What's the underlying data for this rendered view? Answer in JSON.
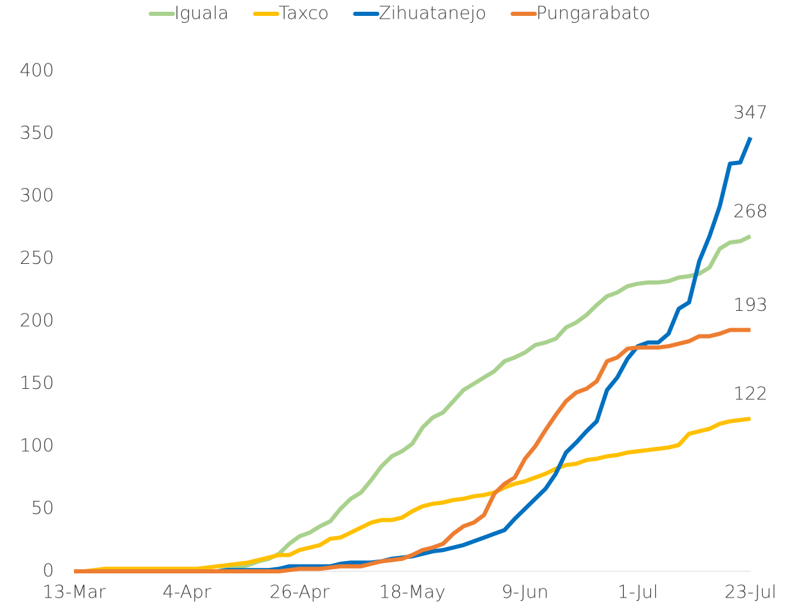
{
  "chart_data": {
    "type": "line",
    "categories": [
      "13-Mar",
      null,
      null,
      null,
      null,
      null,
      null,
      null,
      null,
      null,
      null,
      "4-Apr",
      null,
      null,
      null,
      null,
      null,
      null,
      null,
      null,
      null,
      null,
      "26-Apr",
      null,
      null,
      null,
      null,
      null,
      null,
      null,
      null,
      null,
      null,
      "18-May",
      null,
      null,
      null,
      null,
      null,
      null,
      null,
      null,
      null,
      null,
      "9-Jun",
      null,
      null,
      null,
      null,
      null,
      null,
      null,
      null,
      null,
      null,
      "1-Jul",
      null,
      null,
      null,
      null,
      null,
      null,
      null,
      null,
      null,
      null,
      "23-Jul"
    ],
    "series": [
      {
        "name": "Iguala",
        "color": "#a9d18e",
        "values": [
          0,
          0,
          0,
          0,
          0,
          0,
          0,
          0,
          0,
          0,
          0,
          0,
          0,
          0,
          0,
          2,
          3,
          5,
          8,
          10,
          14,
          22,
          28,
          31,
          36,
          40,
          50,
          58,
          63,
          73,
          84,
          92,
          96,
          102,
          115,
          123,
          127,
          136,
          145,
          150,
          155,
          160,
          168,
          171,
          175,
          181,
          183,
          186,
          195,
          199,
          205,
          213,
          220,
          223,
          228,
          230,
          231,
          231,
          232,
          235,
          236,
          238,
          243,
          258,
          263,
          264,
          268
        ]
      },
      {
        "name": "Taxco",
        "color": "#ffc000",
        "values": [
          0,
          0,
          1,
          2,
          2,
          2,
          2,
          2,
          2,
          2,
          2,
          2,
          2,
          3,
          4,
          5,
          6,
          7,
          9,
          11,
          13,
          13,
          17,
          19,
          21,
          26,
          27,
          31,
          35,
          39,
          41,
          41,
          43,
          48,
          52,
          54,
          55,
          57,
          58,
          60,
          61,
          63,
          67,
          70,
          72,
          75,
          78,
          82,
          85,
          86,
          89,
          90,
          92,
          93,
          95,
          96,
          97,
          98,
          99,
          101,
          110,
          112,
          114,
          118,
          120,
          121,
          122
        ]
      },
      {
        "name": "Zihuatanejo",
        "color": "#0070c0",
        "values": [
          0,
          0,
          0,
          0,
          0,
          0,
          0,
          0,
          0,
          0,
          0,
          0,
          0,
          0,
          0,
          1,
          1,
          1,
          1,
          1,
          2,
          4,
          4,
          4,
          4,
          4,
          6,
          7,
          7,
          7,
          8,
          10,
          11,
          12,
          14,
          16,
          17,
          19,
          21,
          24,
          27,
          30,
          33,
          42,
          50,
          58,
          66,
          78,
          95,
          103,
          112,
          120,
          145,
          155,
          170,
          180,
          183,
          183,
          190,
          210,
          215,
          248,
          268,
          292,
          326,
          327,
          347
        ]
      },
      {
        "name": "Pungarabato",
        "color": "#ed7d31",
        "values": [
          0,
          0,
          0,
          0,
          0,
          0,
          0,
          0,
          0,
          0,
          0,
          0,
          0,
          0,
          0,
          0,
          0,
          0,
          0,
          0,
          0,
          1,
          2,
          2,
          2,
          3,
          4,
          4,
          4,
          6,
          8,
          9,
          10,
          13,
          17,
          19,
          22,
          30,
          36,
          39,
          45,
          62,
          70,
          75,
          90,
          100,
          113,
          125,
          136,
          143,
          146,
          152,
          168,
          171,
          178,
          179,
          179,
          179,
          180,
          182,
          184,
          188,
          188,
          190,
          193,
          193,
          193
        ]
      }
    ],
    "ylim": [
      0,
      400
    ],
    "yticks": [
      0,
      50,
      100,
      150,
      200,
      250,
      300,
      350,
      400
    ],
    "grid": false,
    "legend": "top"
  }
}
